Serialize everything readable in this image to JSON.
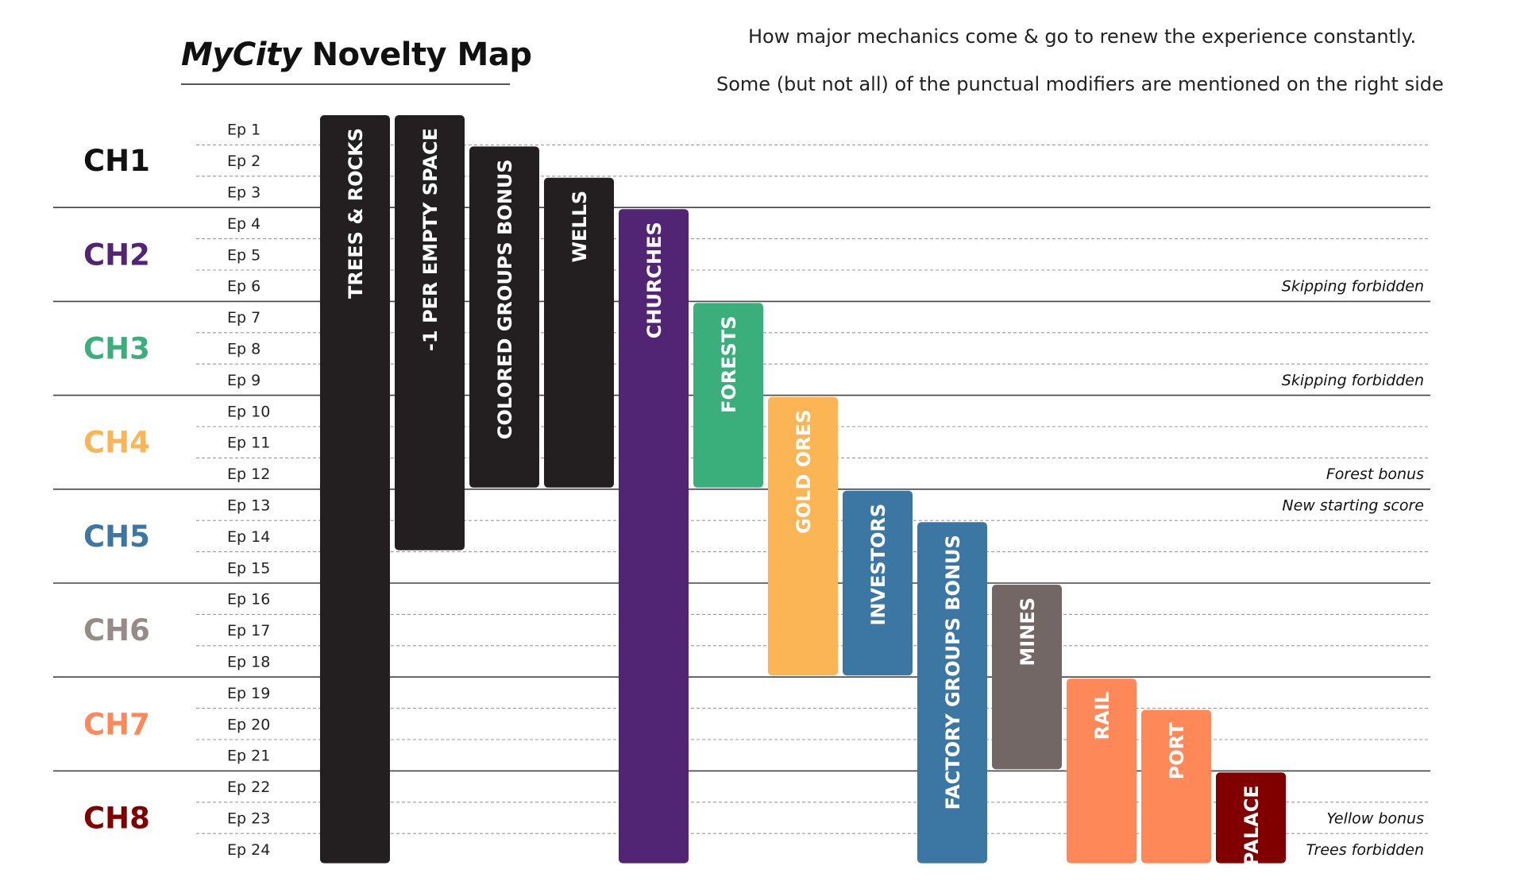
{
  "header": {
    "title_italic": "MyCity",
    "title_rest": " Novelty Map",
    "subtitle_1": "How major mechanics come & go to renew the experience constantly.",
    "subtitle_2": "Some (but not all) of the punctual modifiers are mentioned on the right side"
  },
  "chart_data": {
    "type": "gantt",
    "title": "MyCity Novelty Map",
    "episodes": [
      "Ep 1",
      "Ep 2",
      "Ep 3",
      "Ep 4",
      "Ep 5",
      "Ep 6",
      "Ep 7",
      "Ep 8",
      "Ep 9",
      "Ep 10",
      "Ep 11",
      "Ep 12",
      "Ep 13",
      "Ep 14",
      "Ep 15",
      "Ep 16",
      "Ep 17",
      "Ep 18",
      "Ep 19",
      "Ep 20",
      "Ep 21",
      "Ep 22",
      "Ep 23",
      "Ep 24"
    ],
    "chapters": [
      {
        "label": "CH1",
        "start": 1,
        "end": 3,
        "color": "#111111"
      },
      {
        "label": "CH2",
        "start": 4,
        "end": 6,
        "color": "#522474"
      },
      {
        "label": "CH3",
        "start": 7,
        "end": 9,
        "color": "#3aaf7c"
      },
      {
        "label": "CH4",
        "start": 10,
        "end": 12,
        "color": "#fbb554"
      },
      {
        "label": "CH5",
        "start": 13,
        "end": 15,
        "color": "#3c76a3"
      },
      {
        "label": "CH6",
        "start": 16,
        "end": 18,
        "color": "#958b88"
      },
      {
        "label": "CH7",
        "start": 19,
        "end": 21,
        "color": "#ff8858"
      },
      {
        "label": "CH8",
        "start": 22,
        "end": 24,
        "color": "#800000"
      }
    ],
    "mechanics": [
      {
        "label": "TREES & ROCKS",
        "start": 1,
        "end": 24,
        "color": "#231f20"
      },
      {
        "label": "-1 PER EMPTY SPACE",
        "start": 1,
        "end": 14,
        "color": "#231f20"
      },
      {
        "label": "COLORED GROUPS BONUS",
        "start": 2,
        "end": 12,
        "color": "#231f20"
      },
      {
        "label": "WELLS",
        "start": 3,
        "end": 12,
        "color": "#231f20"
      },
      {
        "label": "CHURCHES",
        "start": 4,
        "end": 24,
        "color": "#522474"
      },
      {
        "label": "FORESTS",
        "start": 7,
        "end": 12,
        "color": "#3aaf7c"
      },
      {
        "label": "GOLD ORES",
        "start": 10,
        "end": 18,
        "color": "#fbb554"
      },
      {
        "label": "INVESTORS",
        "start": 13,
        "end": 18,
        "color": "#3c76a3"
      },
      {
        "label": "FACTORY GROUPS BONUS",
        "start": 14,
        "end": 24,
        "color": "#3c76a3"
      },
      {
        "label": "MINES",
        "start": 16,
        "end": 21,
        "color": "#726765"
      },
      {
        "label": "RAIL",
        "start": 19,
        "end": 24,
        "color": "#ff8858"
      },
      {
        "label": "PORT",
        "start": 20,
        "end": 24,
        "color": "#ff8858"
      },
      {
        "label": "PALACE",
        "start": 22,
        "end": 24,
        "color": "#800000"
      }
    ],
    "modifiers": [
      {
        "label": "Skipping forbidden",
        "episode": 6
      },
      {
        "label": "Skipping forbidden",
        "episode": 9
      },
      {
        "label": "Forest bonus",
        "episode": 12
      },
      {
        "label": "New starting score",
        "episode": 13
      },
      {
        "label": "Yellow bonus",
        "episode": 23
      },
      {
        "label": "Trees forbidden",
        "episode": 24
      }
    ]
  }
}
